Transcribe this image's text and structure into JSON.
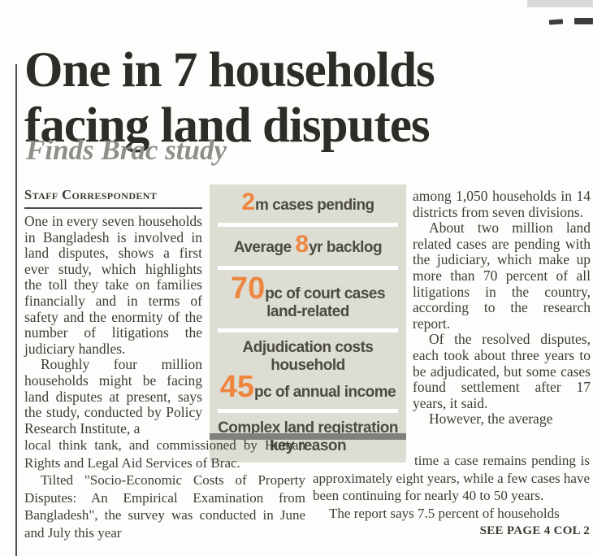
{
  "headline": {
    "line1": "One in 7 households",
    "line2": "facing land disputes"
  },
  "subhead": "Finds Brac study",
  "byline": "Staff Correspondent",
  "article": {
    "col_left": {
      "p1": "One in every seven households in Bangladesh is involved in land disputes, shows a first ever study, which highlights the toll they take on families financially and in terms of safety and the enormity of the number of litigations the judiciary handles.",
      "p2": "Roughly four million households might be facing land disputes at present, says the study, conducted by Policy Research Institute, a"
    },
    "col_left_wide": {
      "p1": "local think tank, and commissioned by Human Rights and Legal Aid Services of Brac.",
      "p2": "Tilted \"Socio-Economic Costs of Property Disputes: An Empirical Examination from Bangladesh\", the survey was conducted in June and July this year"
    },
    "col_right": {
      "p1": "among 1,050 households in 14 districts from seven divisions.",
      "p2": "About two million land related cases are pending with the judiciary, which make up more than 70 percent of all litigations in the country, according to the research report.",
      "p3": "Of the resolved disputes, each took about three years to be adjudicated, but some cases found settlement after 17 years, it said.",
      "p4": "However, the average"
    },
    "col_right_wide": {
      "p1": "time a case remains pending is approximately eight years, while a few cases have been continuing for nearly 40 to 50 years.",
      "p2": "The report says 7.5 percent of households"
    },
    "continuation": "SEE PAGE 4 COL 2"
  },
  "infobox": {
    "row1": {
      "value": "2",
      "label": "m cases pending"
    },
    "row2": {
      "label_pre": "Average ",
      "value": "8",
      "label_post": "yr backlog"
    },
    "row3": {
      "value": "70",
      "label": "pc of court cases land-related"
    },
    "row4": {
      "label_line1": "Adjudication costs household",
      "value": "45",
      "label_post": "pc of annual income"
    },
    "row5": {
      "label": "Complex land registration key reason"
    }
  },
  "colors": {
    "accent_orange": "#ee8640",
    "infobox_bg": "#deddd3",
    "infobox_text": "#4b4a43",
    "bottom_bar_gray": "#7f7f7e",
    "headline_ink": "#2d2c29",
    "subhead_gray": "#8f8e8b",
    "body_ink": "#3e3c38"
  }
}
